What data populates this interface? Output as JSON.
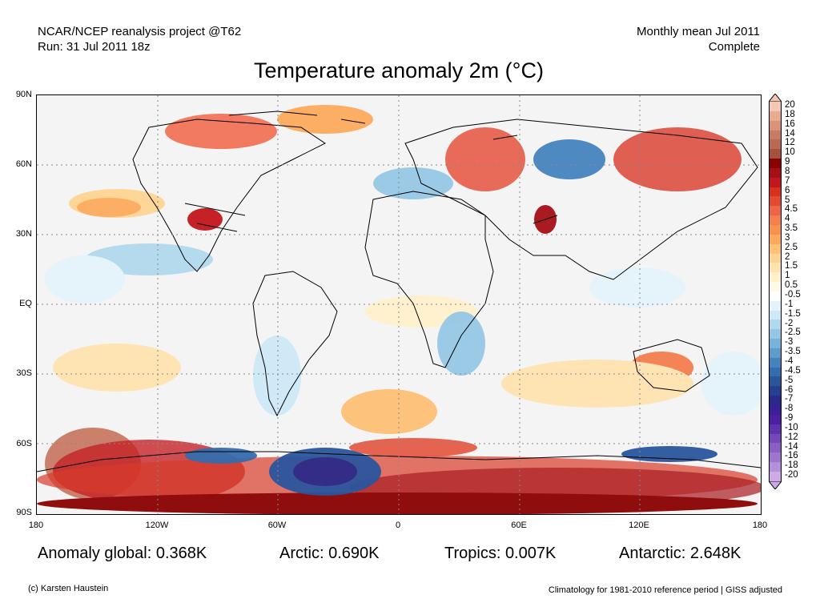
{
  "header": {
    "source_line": "NCAR/NCEP reanalysis project @T62",
    "run_line": "Run: 31 Jul 2011 18z",
    "mean_line": "Monthly mean Jul 2011",
    "status_line": "Complete"
  },
  "title": "Temperature anomaly 2m (°C)",
  "map": {
    "lat_labels": [
      "90N",
      "60N",
      "30N",
      "EQ",
      "30S",
      "60S",
      "90S"
    ],
    "lon_labels": [
      "180",
      "120W",
      "60W",
      "0",
      "60E",
      "120E",
      "180"
    ],
    "region_icon": "world-map-anomaly"
  },
  "colorbar": {
    "levels": [
      "20",
      "18",
      "16",
      "14",
      "12",
      "10",
      "9",
      "8",
      "7",
      "6",
      "5",
      "4.5",
      "4",
      "3.5",
      "3",
      "2.5",
      "2",
      "1.5",
      "1",
      "0.5",
      "-0.5",
      "-1",
      "-1.5",
      "-2",
      "-2.5",
      "-3",
      "-3.5",
      "-4",
      "-4.5",
      "-5",
      "-6",
      "-7",
      "-8",
      "-9",
      "-10",
      "-12",
      "-14",
      "-16",
      "-18",
      "-20"
    ],
    "colors": [
      "#f3c7b1",
      "#e8ab90",
      "#d99278",
      "#c97a64",
      "#b86a54",
      "#a4523f",
      "#8b0000",
      "#a50f15",
      "#c2171c",
      "#d7301f",
      "#e34a33",
      "#ef6548",
      "#f47e4d",
      "#f8934f",
      "#fbaa5c",
      "#fdc077",
      "#fdd493",
      "#fee3ae",
      "#fff1cc",
      "#fffae6",
      "#ffffff",
      "#e4f3fb",
      "#cde8f6",
      "#b1d9ee",
      "#95c7e4",
      "#77b2d8",
      "#5d9bcb",
      "#4683be",
      "#356cad",
      "#2a569e",
      "#243f8f",
      "#2b2a8a",
      "#3a2096",
      "#4c1fa2",
      "#6132ad",
      "#7647b8",
      "#8b5ec4",
      "#a075d0",
      "#b68fdc",
      "#ccaae8"
    ]
  },
  "stats": {
    "global": "Anomaly global: 0.368K",
    "arctic": "Arctic: 0.690K",
    "tropics": "Tropics: 0.007K",
    "antarctic": "Antarctic: 2.648K"
  },
  "footer": {
    "credit": "(c) Karsten Haustein",
    "climatology": "Climatology for 1981-2010 reference period | GISS adjusted"
  }
}
